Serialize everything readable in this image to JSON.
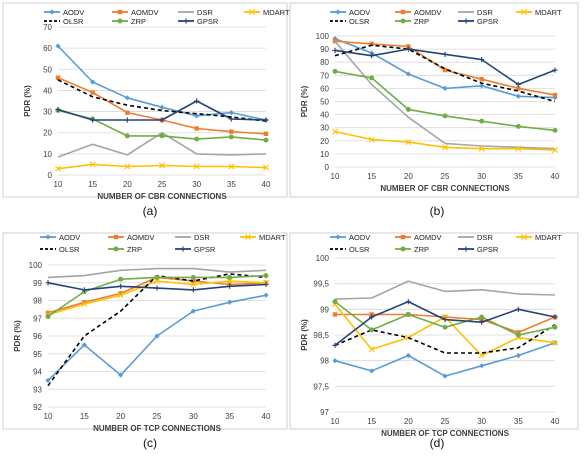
{
  "colors": {
    "AODV": "#5b9bd5",
    "AOMDV": "#ed7d31",
    "DSR": "#a5a5a5",
    "MDART": "#ffc000",
    "OLSR": "#000000",
    "ZRP": "#70ad47",
    "GPSR": "#264478"
  },
  "chart_data": [
    {
      "type": "line",
      "panel_label": "(a)",
      "ylabel": "PDR (%)",
      "xlabel": "NUMBER OF CBR CONNECTIONS",
      "x": [
        10,
        15,
        20,
        25,
        30,
        35,
        40
      ],
      "xlim": [
        10,
        40
      ],
      "ylim": [
        0,
        70
      ],
      "yticks": [
        0,
        10,
        20,
        30,
        40,
        50,
        60,
        70
      ],
      "ytick_labels": [
        "0",
        "10",
        "20",
        "30",
        "40",
        "50",
        "60",
        "70"
      ],
      "legend_position": "top",
      "legend_rows": [
        [
          "AODV",
          "AOMDV",
          "DSR",
          "MDART"
        ],
        [
          "OLSR",
          "ZRP",
          "GPSR"
        ]
      ],
      "series": [
        {
          "name": "AODV",
          "values": [
            61,
            44,
            36.5,
            32,
            28,
            29.5,
            26
          ]
        },
        {
          "name": "AOMDV",
          "values": [
            46,
            39,
            29.5,
            26,
            22,
            20.5,
            19.5
          ]
        },
        {
          "name": "DSR",
          "values": [
            8.5,
            14.5,
            9.5,
            20,
            10,
            9.5,
            10
          ]
        },
        {
          "name": "MDART",
          "values": [
            3,
            5,
            4,
            4.5,
            4,
            4,
            3.5
          ]
        },
        {
          "name": "OLSR",
          "values": [
            45,
            37,
            33,
            30.5,
            29,
            27.5,
            25.5
          ]
        },
        {
          "name": "ZRP",
          "values": [
            30.5,
            26.5,
            18.5,
            18.5,
            17,
            18,
            16.5
          ]
        },
        {
          "name": "GPSR",
          "values": [
            31,
            26,
            26,
            26,
            35,
            26.5,
            26
          ]
        }
      ]
    },
    {
      "type": "line",
      "panel_label": "(b)",
      "ylabel": "PDR (%)",
      "xlabel": "NUMBER OF CBR CONNECTIONS",
      "x": [
        10,
        15,
        20,
        25,
        30,
        35,
        40
      ],
      "xlim": [
        10,
        40
      ],
      "ylim": [
        0,
        100
      ],
      "yticks": [
        0,
        10,
        20,
        30,
        40,
        50,
        60,
        70,
        80,
        90,
        100
      ],
      "ytick_labels": [
        "0",
        "10",
        "20",
        "30",
        "40",
        "50",
        "60",
        "70",
        "80",
        "90",
        "100"
      ],
      "legend_position": "top",
      "legend_rows": [
        [
          "AODV",
          "AOMDV",
          "DSR",
          "MDART"
        ],
        [
          "OLSR",
          "ZRP",
          "GPSR"
        ]
      ],
      "series": [
        {
          "name": "AODV",
          "values": [
            98,
            87,
            71,
            60,
            62,
            54,
            53
          ]
        },
        {
          "name": "AOMDV",
          "values": [
            96,
            94,
            92,
            74,
            67,
            60,
            55
          ]
        },
        {
          "name": "DSR",
          "values": [
            96,
            63,
            38,
            18,
            16,
            15,
            14
          ]
        },
        {
          "name": "MDART",
          "values": [
            27,
            21,
            19,
            15,
            14,
            14,
            13
          ]
        },
        {
          "name": "OLSR",
          "values": [
            85,
            93,
            90,
            75,
            64,
            58,
            50
          ]
        },
        {
          "name": "ZRP",
          "values": [
            73,
            68,
            44,
            39,
            35,
            31,
            28
          ]
        },
        {
          "name": "GPSR",
          "values": [
            89,
            85,
            90,
            86,
            82,
            63,
            74
          ]
        }
      ]
    },
    {
      "type": "line",
      "panel_label": "(c)",
      "ylabel": "PDR (%)",
      "xlabel": "NUMBER OF TCP CONNECTIONS",
      "x": [
        10,
        15,
        20,
        25,
        30,
        35,
        40
      ],
      "xlim": [
        10,
        40
      ],
      "ylim": [
        92,
        100
      ],
      "yticks": [
        92,
        93,
        94,
        95,
        96,
        97,
        98,
        99,
        100
      ],
      "ytick_labels": [
        "92",
        "93",
        "94",
        "95",
        "96",
        "97",
        "98",
        "99",
        "100"
      ],
      "legend_position": "top",
      "legend_rows": [
        [
          "AODV",
          "AOMDV",
          "DSR",
          "MDART"
        ],
        [
          "OLSR",
          "ZRP",
          "GPSR"
        ]
      ],
      "series": [
        {
          "name": "AODV",
          "values": [
            93.5,
            95.5,
            93.8,
            96,
            97.4,
            97.9,
            98.3
          ]
        },
        {
          "name": "AOMDV",
          "values": [
            97.3,
            97.9,
            98.4,
            99.3,
            99.1,
            98.9,
            99
          ]
        },
        {
          "name": "DSR",
          "values": [
            99.3,
            99.4,
            99.7,
            99.8,
            99.8,
            99.6,
            99.7
          ]
        },
        {
          "name": "MDART",
          "values": [
            97.2,
            97.8,
            98.3,
            99.1,
            98.9,
            99.1,
            99
          ]
        },
        {
          "name": "OLSR",
          "values": [
            93.2,
            96,
            97.4,
            99.4,
            99.1,
            99.5,
            99.3
          ]
        },
        {
          "name": "ZRP",
          "values": [
            97.1,
            98.5,
            99.2,
            99.3,
            99.3,
            99.3,
            99.4
          ]
        },
        {
          "name": "GPSR",
          "values": [
            99,
            98.6,
            98.8,
            98.7,
            98.6,
            98.8,
            98.9
          ]
        }
      ]
    },
    {
      "type": "line",
      "panel_label": "(d)",
      "ylabel": "PDR (%)",
      "xlabel": "NUMBER OF TCP CONNECTIONS",
      "x": [
        10,
        15,
        20,
        25,
        30,
        35,
        40
      ],
      "xlim": [
        10,
        40
      ],
      "ylim": [
        97,
        100
      ],
      "yticks": [
        97,
        97.5,
        98,
        98.5,
        99,
        99.5,
        100
      ],
      "ytick_labels": [
        "97",
        "97,5",
        "98",
        "98,5",
        "99",
        "99,5",
        "100"
      ],
      "legend_position": "top",
      "legend_rows": [
        [
          "AODV",
          "AOMDV",
          "DSR",
          "MDART"
        ],
        [
          "OLSR",
          "ZRP",
          "GPSR"
        ]
      ],
      "series": [
        {
          "name": "AODV",
          "values": [
            98,
            97.8,
            98.1,
            97.7,
            97.9,
            98.1,
            98.35
          ]
        },
        {
          "name": "AOMDV",
          "values": [
            98.9,
            98.9,
            98.9,
            98.85,
            98.8,
            98.55,
            98.85
          ]
        },
        {
          "name": "DSR",
          "values": [
            99.2,
            99.22,
            99.55,
            99.35,
            99.38,
            99.3,
            99.28
          ]
        },
        {
          "name": "MDART",
          "values": [
            99.1,
            98.22,
            98.45,
            98.85,
            98.1,
            98.45,
            98.35
          ]
        },
        {
          "name": "OLSR",
          "values": [
            98.3,
            98.6,
            98.45,
            98.15,
            98.15,
            98.25,
            98.7
          ]
        },
        {
          "name": "ZRP",
          "values": [
            99.15,
            98.6,
            98.9,
            98.65,
            98.85,
            98.5,
            98.65
          ]
        },
        {
          "name": "GPSR",
          "values": [
            98.3,
            98.85,
            99.15,
            98.8,
            98.75,
            99,
            98.85
          ]
        }
      ]
    }
  ]
}
